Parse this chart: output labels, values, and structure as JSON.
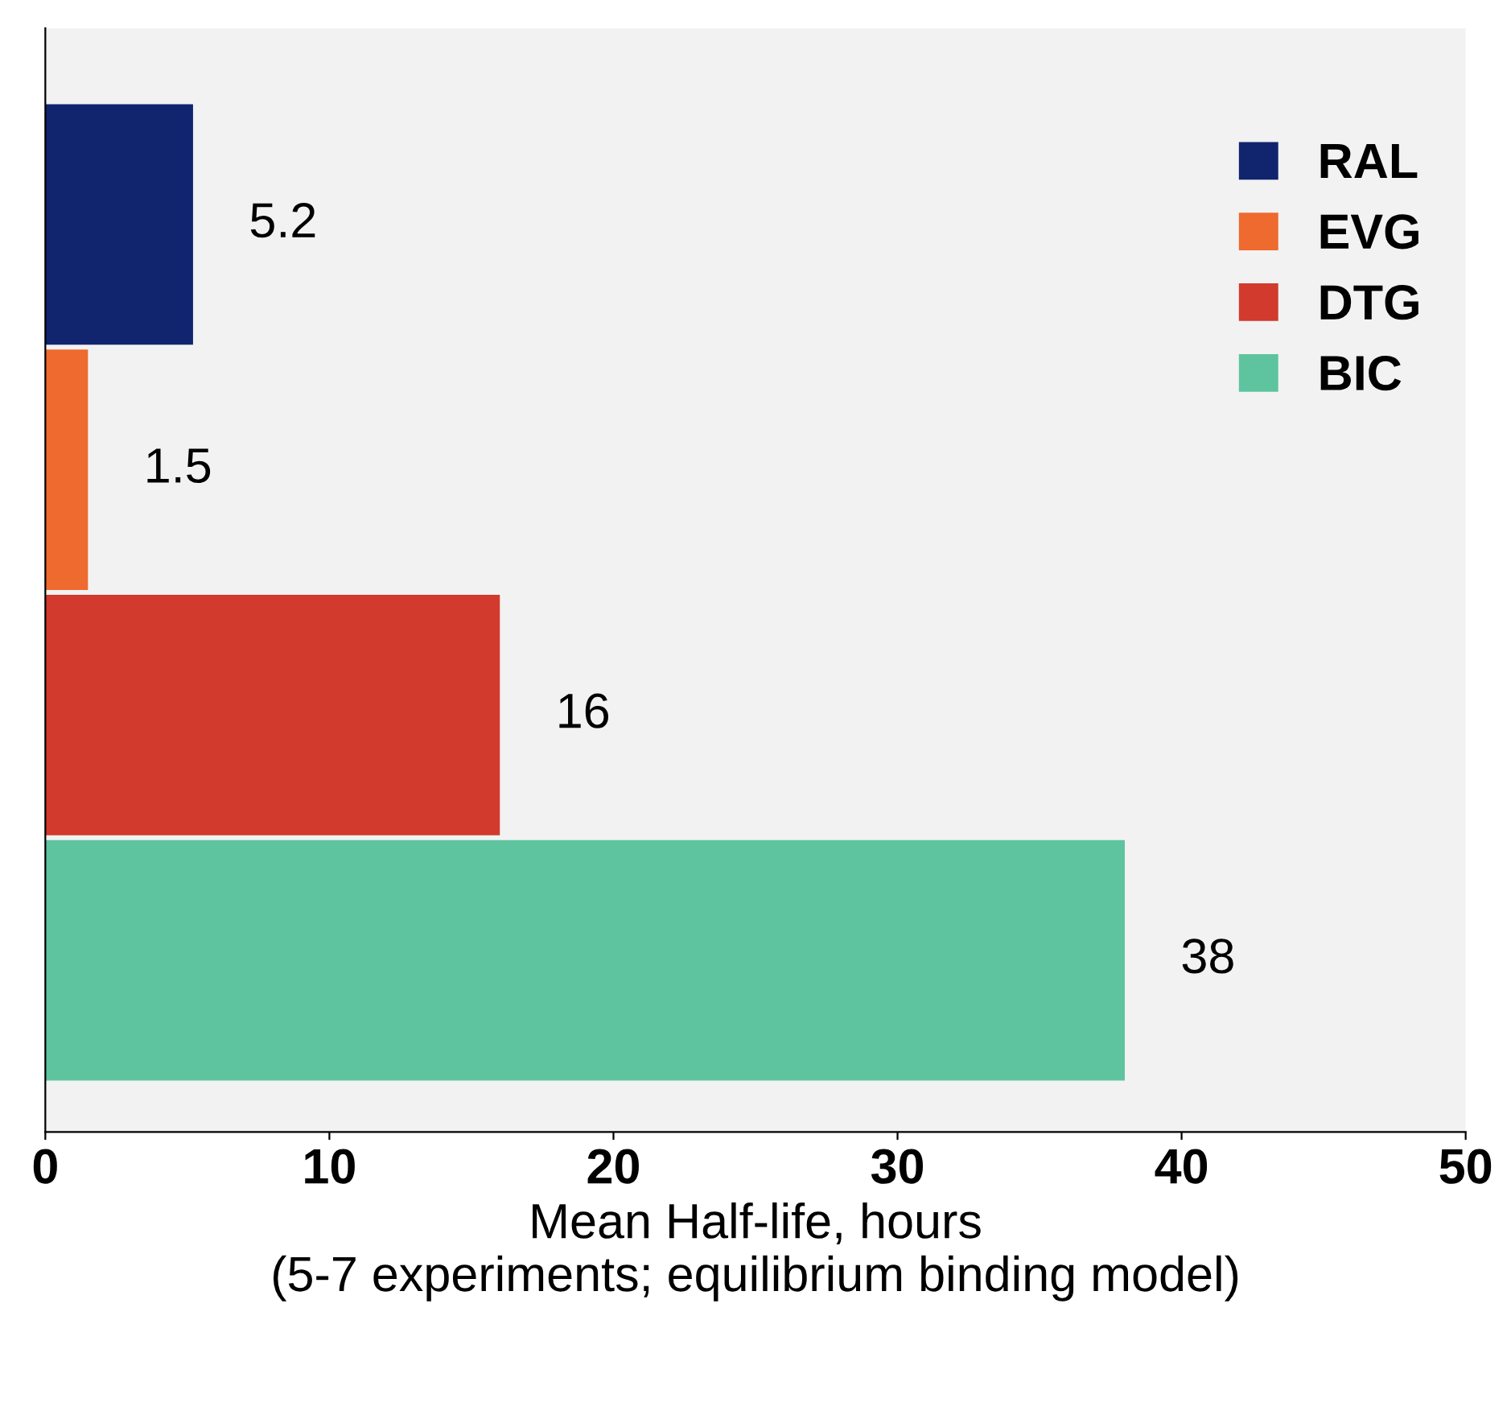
{
  "chart_data": {
    "type": "bar",
    "orientation": "horizontal",
    "categories": [
      null,
      null,
      null,
      null
    ],
    "series": [
      {
        "name": "RAL",
        "color": "#10256e",
        "values": [
          5.2,
          null,
          null,
          null
        ]
      },
      {
        "name": "EVG",
        "color": "#ee6a2e",
        "values": [
          null,
          1.5,
          null,
          null
        ]
      },
      {
        "name": "DTG",
        "color": "#d13a2c",
        "values": [
          null,
          null,
          16,
          null
        ]
      },
      {
        "name": "BIC",
        "color": "#5ec4a0",
        "values": [
          null,
          null,
          null,
          38
        ]
      }
    ],
    "data_labels": true,
    "xlim": [
      0,
      50
    ],
    "xticks": [
      0,
      10,
      20,
      30,
      40,
      50
    ],
    "xlabel": "Mean Half-life, hours\n(5-7 experiments; equilibrium binding model)",
    "legend": "right",
    "grid": false
  }
}
